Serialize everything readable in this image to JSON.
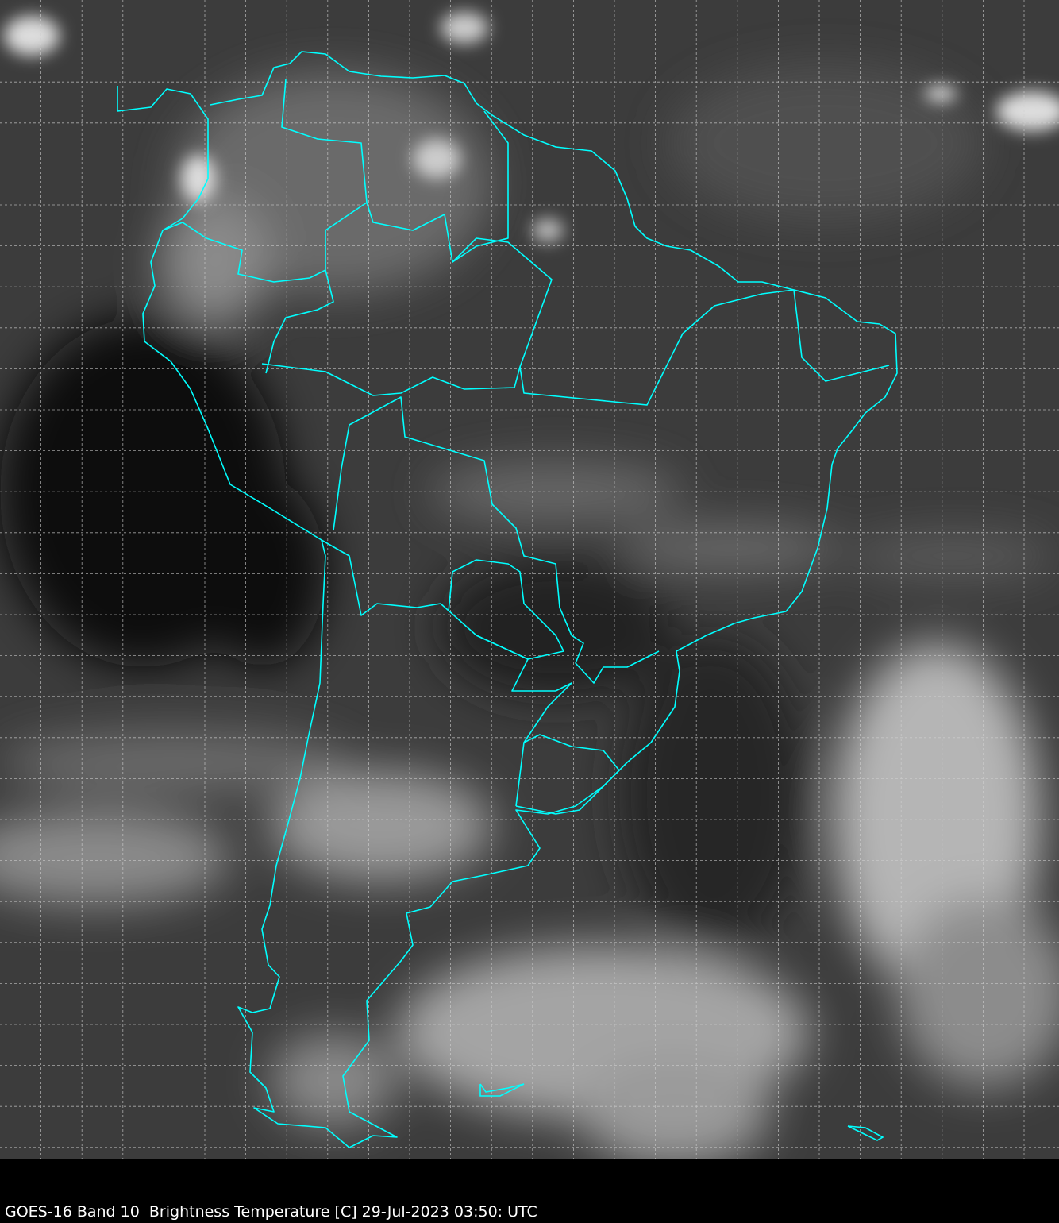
{
  "caption": "GOES-16 Band 10  Brightness Temperature [C] 29-Jul-2023 03:50: UTC",
  "colors": {
    "background": "#000000",
    "coastline": "#00ffff",
    "grid": "#d0d0d0"
  }
}
